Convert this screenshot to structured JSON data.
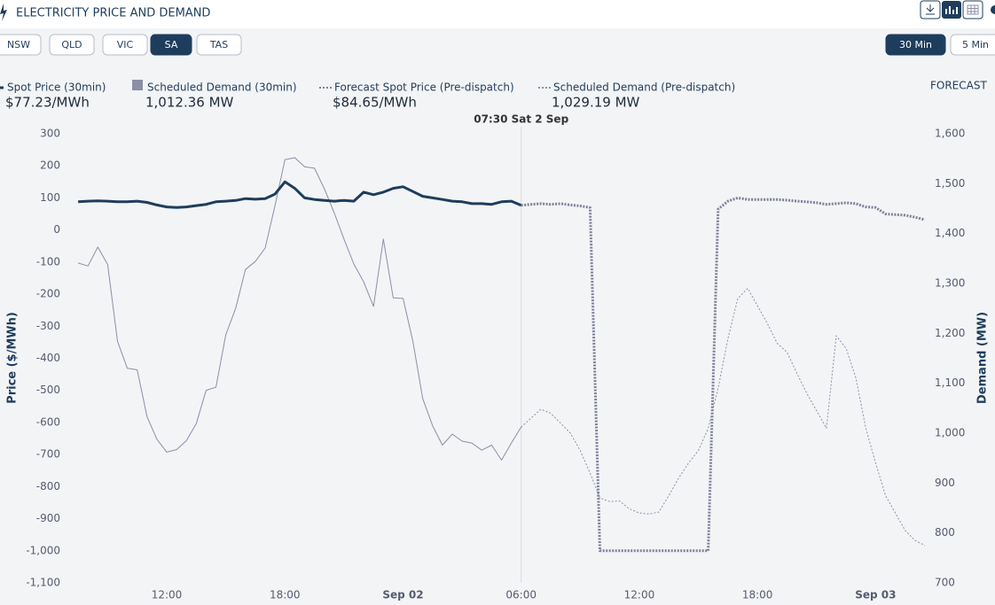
{
  "ui": {
    "title": "ELECTRICITY PRICE AND DEMAND",
    "regions": [
      "NSW",
      "QLD",
      "VIC",
      "SA",
      "TAS"
    ],
    "selected_region": "SA",
    "intervals": [
      "30 Min",
      "5 Min"
    ],
    "selected_interval": "30 Min",
    "forecast_label": "FORECAST"
  },
  "chart_data": {
    "type": "line",
    "x": [
      7.5,
      8,
      8.5,
      9,
      9.5,
      10,
      10.5,
      11,
      11.5,
      12,
      12.5,
      13,
      13.5,
      14,
      14.5,
      15,
      15.5,
      16,
      16.5,
      17,
      17.5,
      18,
      18.5,
      19,
      19.5,
      20,
      20.5,
      21,
      21.5,
      22,
      22.5,
      23,
      23.5,
      24,
      24.5,
      25,
      25.5,
      26,
      26.5,
      27,
      27.5,
      28,
      28.5,
      29,
      29.5,
      30,
      30.5,
      31,
      31.5,
      32,
      32.5,
      33,
      33.5,
      34,
      34.5,
      35,
      35.5,
      36,
      36.5,
      37,
      37.5,
      38,
      38.5,
      39,
      39.5,
      40,
      40.5,
      41,
      41.5,
      42,
      42.5,
      43,
      43.5,
      44,
      44.5,
      45,
      45.5,
      46,
      46.5,
      47,
      47.5,
      48,
      48.5,
      49,
      49.5,
      50,
      50.5
    ],
    "xlim": [
      7,
      51
    ],
    "xticks": [
      {
        "value": 12,
        "label": "12:00"
      },
      {
        "value": 18,
        "label": "18:00"
      },
      {
        "value": 24,
        "label": "Sep 02"
      },
      {
        "value": 30,
        "label": "06:00"
      },
      {
        "value": 36,
        "label": "12:00"
      },
      {
        "value": 42,
        "label": "18:00"
      },
      {
        "value": 48,
        "label": "Sep 03"
      }
    ],
    "ylabel": "Price ($/MWh)",
    "y2label": "Demand (MW)",
    "ylim": [
      -1100,
      300
    ],
    "yticks": [
      {
        "value": -1100,
        "label": "-1,100"
      },
      {
        "value": -1000,
        "label": "-1,000"
      },
      -900,
      -800,
      -700,
      -600,
      -500,
      -400,
      -300,
      -200,
      -100,
      0,
      100,
      200,
      300
    ],
    "y2lim": [
      700,
      1600
    ],
    "y2ticks": [
      700,
      800,
      900,
      {
        "value": 1000,
        "label": "1,000"
      },
      {
        "value": 1100,
        "label": "1,100"
      },
      {
        "value": 1200,
        "label": "1,200"
      },
      {
        "value": 1300,
        "label": "1,300"
      },
      {
        "value": 1400,
        "label": "1,400"
      },
      {
        "value": 1500,
        "label": "1,500"
      },
      {
        "value": 1600,
        "label": "1,600"
      }
    ],
    "cursor": {
      "x": 30,
      "label": "07:30 Sat 2 Sep"
    },
    "series": [
      {
        "name": "Spot Price (30min)",
        "current": "$77.23/MWh",
        "color": "#1e3d5c",
        "line_style": "solid",
        "width": 3,
        "legend_marker": "line",
        "values": [
          88,
          90,
          91,
          90,
          88,
          88,
          90,
          86,
          78,
          72,
          70,
          72,
          76,
          80,
          88,
          90,
          92,
          98,
          96,
          98,
          112,
          150,
          130,
          100,
          95,
          92,
          90,
          92,
          90,
          118,
          110,
          118,
          130,
          135,
          120,
          105,
          100,
          95,
          90,
          88,
          82,
          82,
          80,
          88,
          90,
          77.23,
          null,
          null,
          null,
          null,
          null,
          null,
          null,
          null,
          null,
          null,
          null,
          null,
          null,
          null,
          null,
          null,
          null,
          null,
          null,
          null,
          null,
          null,
          null,
          null,
          null,
          null,
          null,
          null,
          null,
          null,
          null,
          null,
          null,
          null,
          null,
          null,
          null,
          null,
          null,
          null,
          null
        ]
      },
      {
        "name": "Scheduled Demand (30min)",
        "current": "1,012.36 MW",
        "color": "#8a8fa8",
        "line_style": "solid",
        "width": 1,
        "legend_marker": "square",
        "axis": "y2",
        "values": [
          1341,
          1335,
          1373,
          1338,
          1184,
          1130,
          1127,
          1033,
          988,
          962,
          967,
          985,
          1019,
          1086,
          1092,
          1197,
          1250,
          1328,
          1344,
          1371,
          1456,
          1548,
          1552,
          1534,
          1531,
          1490,
          1442,
          1389,
          1339,
          1303,
          1254,
          1389,
          1271,
          1270,
          1184,
          1069,
          1015,
          976,
          998,
          984,
          980,
          966,
          976,
          946,
          980,
          1012.36,
          null,
          null,
          null,
          null,
          null,
          null,
          null,
          null,
          null,
          null,
          null,
          null,
          null,
          null,
          null,
          null,
          null,
          null,
          null,
          null,
          null,
          null,
          null,
          null,
          null,
          null,
          null,
          null,
          null,
          null,
          null,
          null,
          null,
          null,
          null,
          null,
          null,
          null,
          null,
          null,
          null
        ]
      },
      {
        "name": "Forecast Spot Price (Pre-dispatch)",
        "current": "$84.65/MWh",
        "color": "#7d8199",
        "line_style": "dotted",
        "width": 3,
        "legend_marker": "dotted",
        "values": [
          null,
          null,
          null,
          null,
          null,
          null,
          null,
          null,
          null,
          null,
          null,
          null,
          null,
          null,
          null,
          null,
          null,
          null,
          null,
          null,
          null,
          null,
          null,
          null,
          null,
          null,
          null,
          null,
          null,
          null,
          null,
          null,
          null,
          null,
          null,
          null,
          null,
          null,
          null,
          null,
          null,
          null,
          null,
          null,
          null,
          77,
          80,
          82,
          80,
          82,
          78,
          75,
          70,
          -1000,
          -1000,
          -1000,
          -1000,
          -1000,
          -1000,
          -1000,
          -1000,
          -1000,
          -1000,
          -1000,
          -1000,
          65,
          90,
          100,
          95,
          95,
          95,
          95,
          93,
          90,
          88,
          85,
          80,
          82,
          85,
          82,
          72,
          70,
          50,
          48,
          46,
          40,
          32
        ]
      },
      {
        "name": "Scheduled Demand (Pre-dispatch)",
        "current": "1,029.19 MW",
        "color": "#8a8fa8",
        "line_style": "dotted",
        "width": 1,
        "legend_marker": "dotted",
        "axis": "y2",
        "values": [
          null,
          null,
          null,
          null,
          null,
          null,
          null,
          null,
          null,
          null,
          null,
          null,
          null,
          null,
          null,
          null,
          null,
          null,
          null,
          null,
          null,
          null,
          null,
          null,
          null,
          null,
          null,
          null,
          null,
          null,
          null,
          null,
          null,
          null,
          null,
          null,
          null,
          null,
          null,
          null,
          null,
          null,
          null,
          null,
          null,
          1012,
          1030,
          1048,
          1040,
          1020,
          1000,
          965,
          920,
          870,
          863,
          864,
          848,
          840,
          838,
          842,
          875,
          910,
          940,
          965,
          1010,
          1090,
          1190,
          1270,
          1290,
          1255,
          1220,
          1180,
          1162,
          1120,
          1080,
          1045,
          1010,
          1195,
          1170,
          1110,
          1010,
          940,
          875,
          840,
          805,
          785,
          775
        ]
      }
    ]
  }
}
